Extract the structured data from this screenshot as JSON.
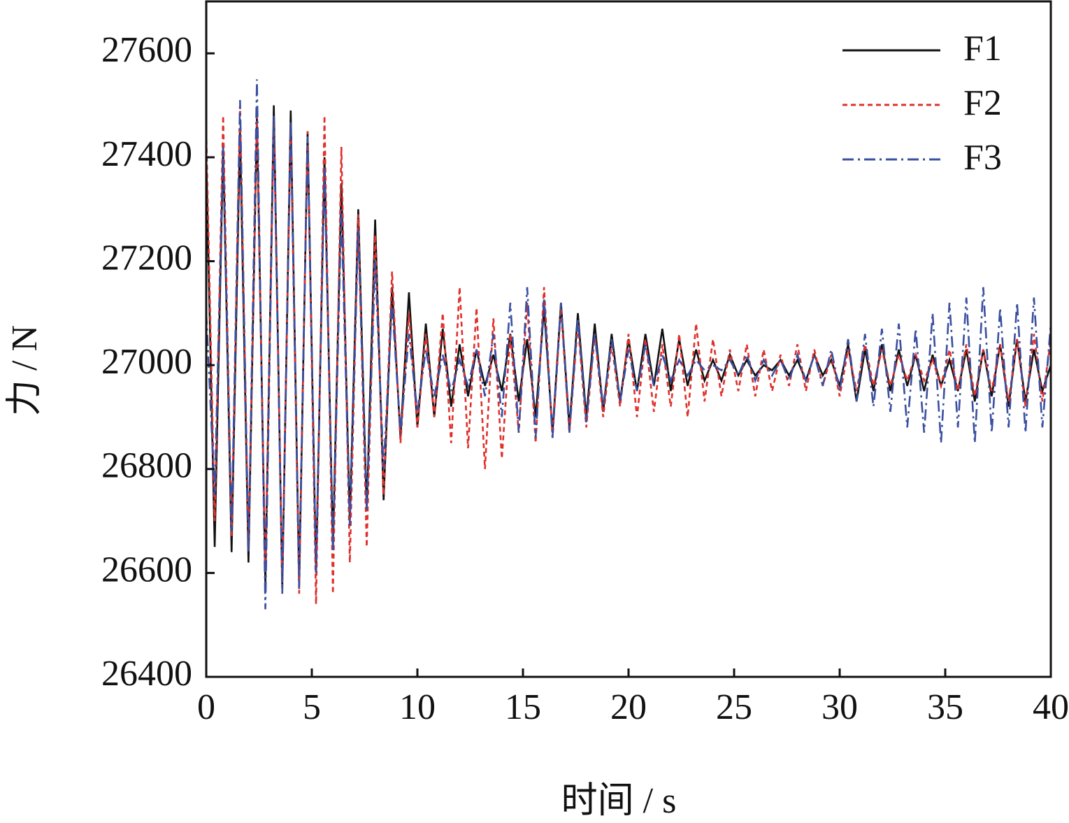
{
  "chart_data": {
    "type": "line",
    "xlabel": "时间 / s",
    "ylabel": "力 / N",
    "xlim": [
      0,
      40
    ],
    "ylim": [
      26400,
      27700
    ],
    "xticks": [
      0,
      5,
      10,
      15,
      20,
      25,
      30,
      35,
      40
    ],
    "yticks": [
      26400,
      26600,
      26800,
      27000,
      27200,
      27400,
      27600
    ],
    "legend": "upper right",
    "grid": false,
    "x": [
      0,
      0.4,
      0.8,
      1.2,
      1.6,
      2,
      2.4,
      2.8,
      3.2,
      3.6,
      4,
      4.4,
      4.8,
      5.2,
      5.6,
      6,
      6.4,
      6.8,
      7.2,
      7.6,
      8,
      8.4,
      8.8,
      9.2,
      9.6,
      10,
      10.4,
      10.8,
      11.2,
      11.6,
      12,
      12.4,
      12.8,
      13.2,
      13.6,
      14,
      14.4,
      14.8,
      15.2,
      15.6,
      16,
      16.4,
      16.8,
      17.2,
      17.6,
      18,
      18.4,
      18.8,
      19.2,
      19.6,
      20,
      20.4,
      20.8,
      21.2,
      21.6,
      22,
      22.4,
      22.8,
      23.2,
      23.6,
      24,
      24.4,
      24.8,
      25.2,
      25.6,
      26,
      26.4,
      26.8,
      27.2,
      27.6,
      28,
      28.4,
      28.8,
      29.2,
      29.6,
      30,
      30.4,
      30.8,
      31.2,
      31.6,
      32,
      32.4,
      32.8,
      33.2,
      33.6,
      34,
      34.4,
      34.8,
      35.2,
      35.6,
      36,
      36.4,
      36.8,
      37.2,
      37.6,
      38,
      38.4,
      38.8,
      39.2,
      39.6,
      40
    ],
    "series": [
      {
        "name": "F1",
        "color": "#111111",
        "dash": "solid",
        "values": [
          27400,
          26650,
          27420,
          26640,
          27450,
          26620,
          27480,
          26580,
          27500,
          26570,
          27490,
          26580,
          27450,
          26600,
          27400,
          26650,
          27350,
          26700,
          27300,
          26720,
          27280,
          26740,
          27150,
          26860,
          27140,
          26880,
          27080,
          26900,
          27070,
          26920,
          27040,
          26940,
          27030,
          26960,
          27020,
          26950,
          27060,
          26930,
          27050,
          26900,
          27110,
          26870,
          27120,
          26880,
          27100,
          26900,
          27080,
          26910,
          27060,
          26930,
          27050,
          26950,
          27060,
          26960,
          27070,
          26950,
          27050,
          26960,
          27030,
          26970,
          27010,
          26970,
          27020,
          26980,
          27010,
          26980,
          27000,
          26990,
          27010,
          26980,
          27010,
          26970,
          27020,
          26980,
          27010,
          26960,
          27040,
          26930,
          27030,
          26950,
          27040,
          26950,
          27030,
          26960,
          27020,
          26950,
          27020,
          26960,
          27010,
          26950,
          27030,
          26930,
          27030,
          26940,
          27040,
          26920,
          27050,
          26930,
          27030,
          26950,
          27000
        ]
      },
      {
        "name": "F2",
        "color": "#e0302c",
        "dash": "dashed",
        "values": [
          27450,
          26700,
          27480,
          26670,
          27500,
          26650,
          27480,
          26600,
          27470,
          26580,
          27460,
          26560,
          27450,
          26540,
          27480,
          26560,
          27420,
          26620,
          27290,
          26650,
          27250,
          26750,
          27180,
          26850,
          27100,
          26880,
          27060,
          26900,
          27100,
          26850,
          27150,
          26840,
          27110,
          26800,
          27090,
          26820,
          27060,
          26870,
          27120,
          26850,
          27150,
          26860,
          27110,
          26870,
          27080,
          26880,
          27060,
          26900,
          27040,
          26920,
          27060,
          26900,
          27050,
          26910,
          27040,
          26920,
          27060,
          26900,
          27080,
          26930,
          27050,
          26940,
          27030,
          26950,
          27040,
          26940,
          27030,
          26950,
          27020,
          26960,
          27040,
          26950,
          27030,
          26960,
          27020,
          26940,
          27030,
          26950,
          27040,
          26960,
          27030,
          26960,
          27020,
          26970,
          27020,
          26970,
          27010,
          26960,
          27030,
          26950,
          27040,
          26940,
          27030,
          26950,
          27040,
          26930,
          27050,
          26920,
          27060,
          26930,
          27050
        ]
      },
      {
        "name": "F3",
        "color": "#3a4fa0",
        "dash": "dashdot",
        "values": [
          27100,
          26750,
          27420,
          26680,
          27510,
          26640,
          27550,
          26530,
          27480,
          26560,
          27470,
          26570,
          27440,
          26600,
          27380,
          26640,
          27300,
          26690,
          27260,
          26720,
          27200,
          26800,
          27120,
          26870,
          27060,
          26910,
          27030,
          26940,
          27020,
          26950,
          27010,
          26960,
          27030,
          26940,
          27060,
          26900,
          27120,
          26870,
          27150,
          26860,
          27130,
          26860,
          27120,
          26870,
          27090,
          26890,
          27060,
          26920,
          27050,
          26930,
          27030,
          26950,
          27040,
          26960,
          27020,
          26970,
          27010,
          26980,
          27010,
          26990,
          27000,
          26990,
          27010,
          26980,
          27020,
          26970,
          27010,
          26980,
          27010,
          26970,
          27020,
          26970,
          27020,
          26960,
          27030,
          26950,
          27050,
          26930,
          27060,
          26920,
          27070,
          26910,
          27080,
          26880,
          27070,
          26870,
          27100,
          26850,
          27120,
          26880,
          27130,
          26850,
          27150,
          26870,
          27110,
          26880,
          27120,
          26870,
          27130,
          26880,
          27080
        ]
      }
    ]
  }
}
